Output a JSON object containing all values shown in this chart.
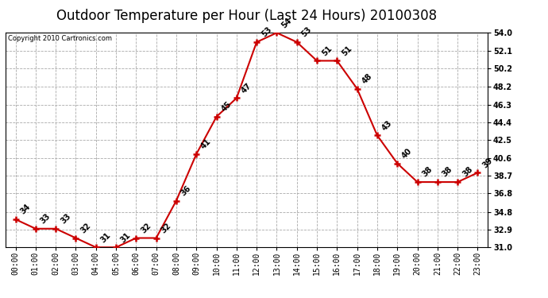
{
  "title": "Outdoor Temperature per Hour (Last 24 Hours) 20100308",
  "copyright": "Copyright 2010 Cartronics.com",
  "hours": [
    "00:00",
    "01:00",
    "02:00",
    "03:00",
    "04:00",
    "05:00",
    "06:00",
    "07:00",
    "08:00",
    "09:00",
    "10:00",
    "11:00",
    "12:00",
    "13:00",
    "14:00",
    "15:00",
    "16:00",
    "17:00",
    "18:00",
    "19:00",
    "20:00",
    "21:00",
    "22:00",
    "23:00"
  ],
  "temps": [
    34,
    33,
    33,
    32,
    31,
    31,
    32,
    32,
    36,
    41,
    45,
    47,
    53,
    54,
    53,
    51,
    51,
    48,
    43,
    40,
    38,
    38,
    38,
    39
  ],
  "line_color": "#cc0000",
  "marker_color": "#cc0000",
  "bg_color": "#ffffff",
  "grid_color": "#aaaaaa",
  "title_fontsize": 12,
  "annot_fontsize": 7,
  "tick_fontsize": 7,
  "copyright_fontsize": 6,
  "ylim_min": 31.0,
  "ylim_max": 54.0,
  "yticks": [
    31.0,
    32.9,
    34.8,
    36.8,
    38.7,
    40.6,
    42.5,
    44.4,
    46.3,
    48.2,
    50.2,
    52.1,
    54.0
  ]
}
